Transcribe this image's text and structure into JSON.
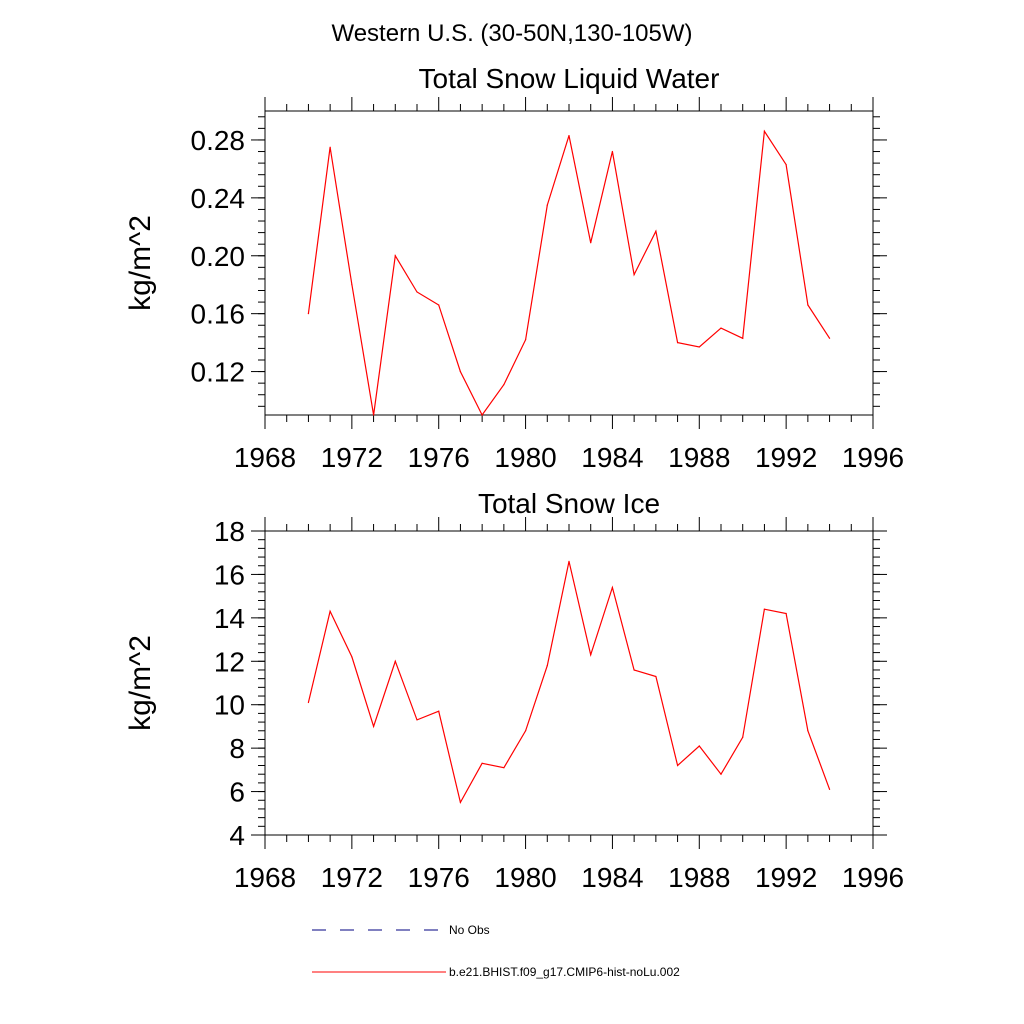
{
  "figure": {
    "main_title": "Western U.S. (30-50N,130-105W)"
  },
  "colors": {
    "series": "#ff0000",
    "obs": "#000080",
    "axis": "#000000"
  },
  "legend": {
    "entries": [
      {
        "label": "No Obs",
        "style": "dashed"
      },
      {
        "label": "b.e21.BHIST.f09_g17.CMIP6-hist-noLu.002",
        "style": "solid"
      }
    ]
  },
  "chart_data": [
    {
      "type": "line",
      "title": "Total Snow Liquid Water",
      "xlabel": "",
      "ylabel": "kg/m^2",
      "xlim": [
        1968,
        1996
      ],
      "ylim": [
        0.09,
        0.3
      ],
      "xticks": [
        1968,
        1972,
        1976,
        1980,
        1984,
        1988,
        1992,
        1996
      ],
      "xtick_labels": [
        "1968",
        "1972",
        "1976",
        "1980",
        "1984",
        "1988",
        "1992",
        "1996"
      ],
      "yticks": [
        0.12,
        0.16,
        0.2,
        0.24,
        0.28
      ],
      "ytick_labels": [
        "0.12",
        "0.16",
        "0.20",
        "0.24",
        "0.28"
      ],
      "grid": false,
      "series": [
        {
          "name": "b.e21.BHIST.f09_g17.CMIP6-hist-noLu.002",
          "x": [
            1970,
            1971,
            1972,
            1973,
            1974,
            1975,
            1976,
            1977,
            1978,
            1979,
            1980,
            1981,
            1982,
            1983,
            1984,
            1985,
            1986,
            1987,
            1988,
            1989,
            1990,
            1991,
            1992,
            1993,
            1994
          ],
          "y": [
            0.16,
            0.275,
            0.18,
            0.09,
            0.2,
            0.175,
            0.166,
            0.12,
            0.09,
            0.111,
            0.142,
            0.235,
            0.283,
            0.209,
            0.272,
            0.187,
            0.217,
            0.14,
            0.137,
            0.15,
            0.143,
            0.286,
            0.263,
            0.166,
            0.143
          ]
        }
      ]
    },
    {
      "type": "line",
      "title": "Total Snow Ice",
      "xlabel": "",
      "ylabel": "kg/m^2",
      "xlim": [
        1968,
        1996
      ],
      "ylim": [
        4,
        18
      ],
      "xticks": [
        1968,
        1972,
        1976,
        1980,
        1984,
        1988,
        1992,
        1996
      ],
      "xtick_labels": [
        "1968",
        "1972",
        "1976",
        "1980",
        "1984",
        "1988",
        "1992",
        "1996"
      ],
      "yticks": [
        4,
        6,
        8,
        10,
        12,
        14,
        16,
        18
      ],
      "ytick_labels": [
        "4",
        "6",
        "8",
        "10",
        "12",
        "14",
        "16",
        "18"
      ],
      "grid": false,
      "series": [
        {
          "name": "b.e21.BHIST.f09_g17.CMIP6-hist-noLu.002",
          "x": [
            1970,
            1971,
            1972,
            1973,
            1974,
            1975,
            1976,
            1977,
            1978,
            1979,
            1980,
            1981,
            1982,
            1983,
            1984,
            1985,
            1986,
            1987,
            1988,
            1989,
            1990,
            1991,
            1992,
            1993,
            1994
          ],
          "y": [
            10.1,
            14.3,
            12.2,
            9.0,
            12.0,
            9.3,
            9.7,
            5.5,
            7.3,
            7.1,
            8.8,
            11.8,
            16.6,
            12.3,
            15.4,
            11.6,
            11.3,
            7.2,
            8.1,
            6.8,
            8.5,
            14.4,
            14.2,
            8.8,
            6.1
          ]
        }
      ]
    }
  ]
}
